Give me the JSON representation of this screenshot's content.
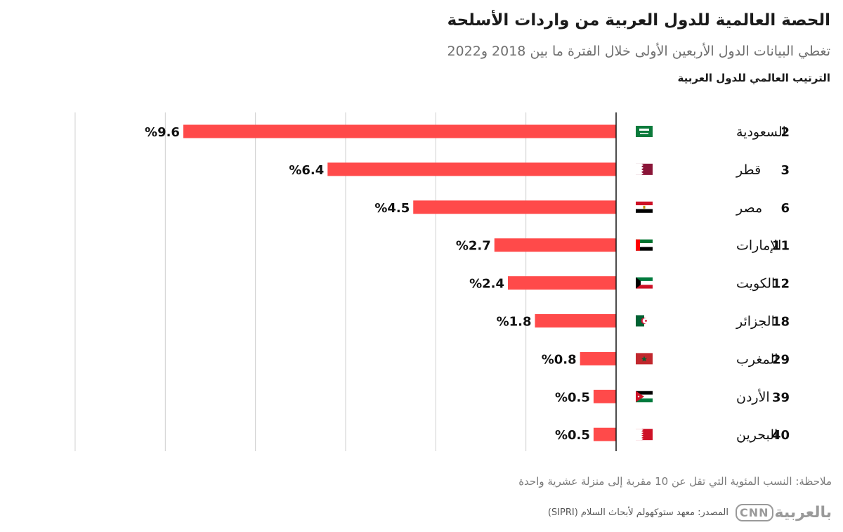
{
  "title": "الحصة العالمية للدول العربية من واردات الأسلحة",
  "subtitle": "تغطي البيانات الدول الأربعين الأولى خلال الفترة ما بين 2018 و2022",
  "rank_header": "الترتيب العالمي للدول العربية",
  "note": "ملاحظة: النسب المئوية التي تقل عن 10 مقربة إلى منزلة عشرية واحدة",
  "source": "المصدر: معهد ستوكهولم لأبحاث السلام (SIPRI)",
  "logo": {
    "ar": "بالعربية",
    "en": "CNN"
  },
  "colors": {
    "bar": "#ff4a4a",
    "axis": "#111111",
    "grid": "#cfcfcf"
  },
  "chart_data": {
    "type": "bar",
    "orientation": "horizontal",
    "direction": "right-to-left",
    "categories": [
      "السعودية",
      "قطر",
      "مصر",
      "الإمارات",
      "الكويت",
      "الجزائر",
      "المغرب",
      "الأردن",
      "البحرين"
    ],
    "ranks": [
      "2",
      "3",
      "6",
      "11",
      "12",
      "18",
      "29",
      "39",
      "40"
    ],
    "values": [
      9.6,
      6.4,
      4.5,
      2.7,
      2.4,
      1.8,
      0.8,
      0.5,
      0.5
    ],
    "value_labels": [
      "%9.6",
      "%6.4",
      "%4.5",
      "%2.7",
      "%2.4",
      "%1.8",
      "%0.8",
      "%0.5",
      "%0.5"
    ],
    "flags": [
      "saudi-arabia",
      "qatar",
      "egypt",
      "uae",
      "kuwait",
      "algeria",
      "morocco",
      "jordan",
      "bahrain"
    ],
    "xlim": [
      0,
      12
    ],
    "grid": true
  }
}
